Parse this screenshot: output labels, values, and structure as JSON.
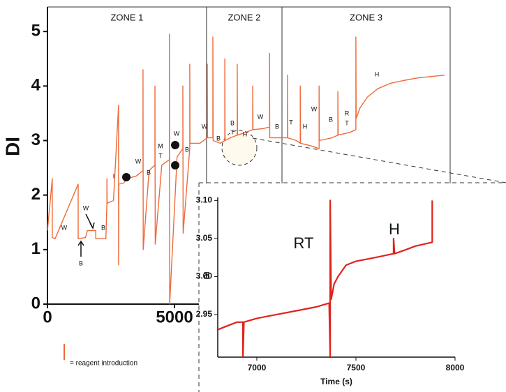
{
  "chart_data": [
    {
      "type": "line",
      "ylabel": "DI",
      "xlim": [
        0,
        15850
      ],
      "ylim": [
        0,
        5.45
      ],
      "xticks": [
        0,
        5000
      ],
      "yticks": [
        0,
        1,
        2,
        3,
        4,
        5
      ],
      "zones": [
        {
          "label": "ZONE 1",
          "start": 0,
          "end": 6260
        },
        {
          "label": "ZONE 2",
          "start": 6260,
          "end": 9230
        },
        {
          "label": "ZONE 3",
          "start": 9230,
          "end": 15850
        }
      ],
      "legend_note": "= reagent introduction",
      "annotations": [
        "W",
        "W",
        "B",
        "B",
        "I",
        "W",
        "B",
        "M",
        "T",
        "W",
        "B",
        "W",
        "B",
        "B",
        "T",
        "H",
        "W",
        "B",
        "T",
        "H",
        "W",
        "B",
        "R",
        "T",
        "H"
      ],
      "series": [
        {
          "color": "#ef6a3a",
          "x": [
            0,
            190,
            190,
            200,
            300,
            1210,
            1210,
            1220,
            1500,
            1570,
            1570,
            1900,
            1900,
            2300,
            2340,
            2340,
            2350,
            2600,
            2800,
            2800,
            2810,
            3000,
            3130,
            3500,
            3760,
            3760,
            3770,
            4000,
            4230,
            4230,
            4240,
            4500,
            4800,
            4800,
            4810,
            5100,
            5330,
            5330,
            5340,
            5600,
            5600,
            5610,
            6000,
            6290,
            6290,
            6300,
            6510,
            6510,
            6520,
            6800,
            6980,
            6980,
            6990,
            7200,
            7470,
            7470,
            7480,
            7800,
            8080,
            8080,
            8090,
            8500,
            8740,
            8740,
            8750,
            9200,
            9450,
            9450,
            9460,
            9800,
            9950,
            9950,
            9960,
            10400,
            10690,
            10690,
            10700,
            11200,
            11430,
            11430,
            11440,
            11900,
            12140,
            12140,
            12150,
            12300,
            12600,
            13000,
            13500,
            14000,
            14600,
            15200,
            15630
          ],
          "values": [
            1.35,
            2.3,
            1.22,
            1.22,
            1.2,
            2.2,
            1.2,
            1.2,
            1.22,
            1.35,
            1.35,
            1.35,
            1.2,
            1.2,
            1.85,
            2.3,
            1.85,
            1.9,
            3.65,
            0.72,
            2.2,
            2.22,
            2.3,
            2.35,
            2.45,
            4.3,
            1.0,
            2.45,
            2.55,
            4.0,
            1.1,
            2.55,
            2.65,
            4.95,
            0,
            2.7,
            2.85,
            4.0,
            1.3,
            2.85,
            4.4,
            2.95,
            2.95,
            3.05,
            4.4,
            3.05,
            3.05,
            4.9,
            3.0,
            2.95,
            3.0,
            4.5,
            3.0,
            3.05,
            3.1,
            4.4,
            3.1,
            3.15,
            3.2,
            4.0,
            3.2,
            3.22,
            3.25,
            4.6,
            3.05,
            3.05,
            3.05,
            4.2,
            3.05,
            3.0,
            2.95,
            4.0,
            2.95,
            2.9,
            2.85,
            4.0,
            3.0,
            3.05,
            3.1,
            3.9,
            3.1,
            3.15,
            3.2,
            4.9,
            3.4,
            3.6,
            3.8,
            3.95,
            4.05,
            4.1,
            4.15,
            4.18,
            4.2
          ]
        }
      ]
    },
    {
      "type": "line",
      "xlabel": "Time (s)",
      "ylabel": "DI",
      "xlim": [
        6803,
        8000
      ],
      "ylim": [
        2.894,
        3.104
      ],
      "xticks": [
        7000,
        7500,
        8000
      ],
      "yticks": [
        2.95,
        {
          "value": 3.0,
          "label": "3.00"
        },
        3.05,
        {
          "value": 3.1,
          "label": "3.10"
        }
      ],
      "annotations": [
        "RT",
        "H"
      ],
      "series": [
        {
          "color": "#e0231c",
          "x": [
            6803,
            6850,
            6900,
            6930,
            6930,
            6935,
            7000,
            7100,
            7200,
            7300,
            7365,
            7370,
            7370,
            7375,
            7390,
            7410,
            7450,
            7500,
            7600,
            7690,
            7690,
            7695,
            7750,
            7800,
            7885,
            7885
          ],
          "values": [
            2.93,
            2.935,
            2.94,
            2.94,
            2.895,
            2.94,
            2.945,
            2.95,
            2.955,
            2.96,
            2.965,
            2.895,
            3.1,
            2.97,
            2.99,
            3.0,
            3.015,
            3.02,
            3.025,
            3.03,
            3.05,
            3.03,
            3.035,
            3.04,
            3.045,
            3.1
          ]
        }
      ]
    }
  ]
}
